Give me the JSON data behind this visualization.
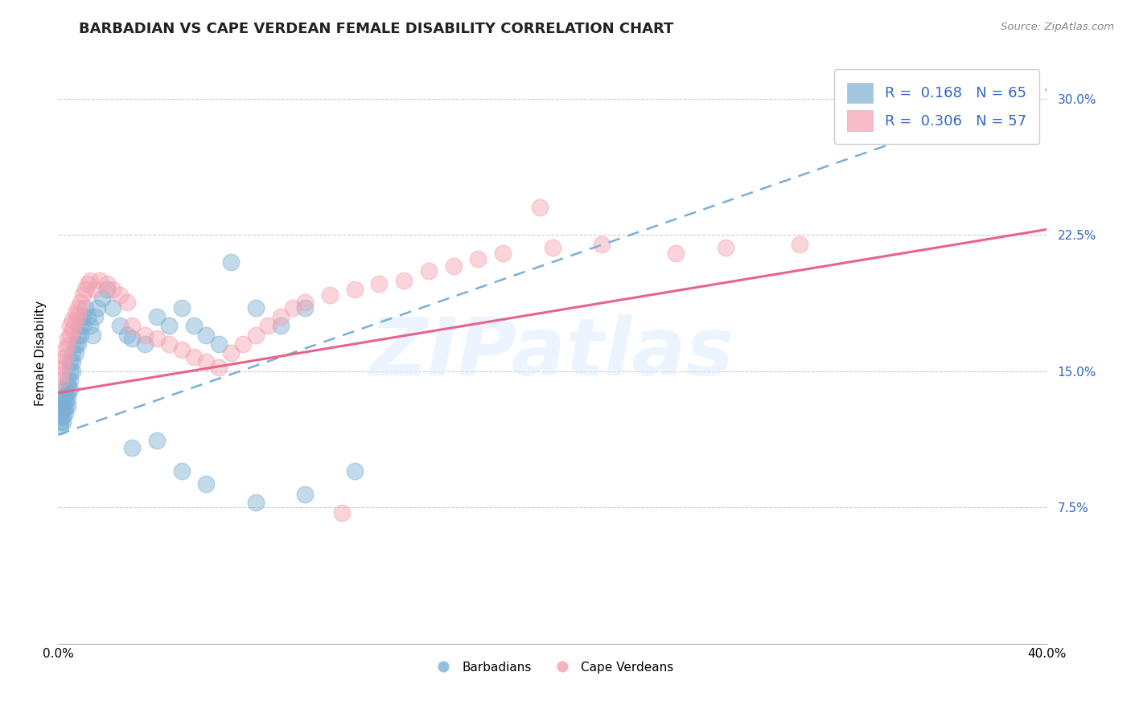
{
  "title": "BARBADIAN VS CAPE VERDEAN FEMALE DISABILITY CORRELATION CHART",
  "source_text": "Source: ZipAtlas.com",
  "ylabel": "Female Disability",
  "xlim": [
    0.0,
    0.4
  ],
  "ylim": [
    0.0,
    0.32
  ],
  "xticks": [
    0.0,
    0.4
  ],
  "xtick_labels": [
    "0.0%",
    "40.0%"
  ],
  "yticks": [
    0.075,
    0.15,
    0.225,
    0.3
  ],
  "ytick_labels": [
    "7.5%",
    "15.0%",
    "22.5%",
    "30.0%"
  ],
  "barbadian_color": "#7BAFD4",
  "capeverdean_color": "#F4A0B0",
  "barbadian_line_color": "#7BAFD4",
  "capeverdean_line_color": "#E8638A",
  "barbadian_R": 0.168,
  "barbadian_N": 65,
  "capeverdean_R": 0.306,
  "capeverdean_N": 57,
  "watermark": "ZIPatlas",
  "title_fontsize": 13,
  "axis_label_fontsize": 11,
  "legend_fontsize": 13,
  "background_color": "#ffffff",
  "grid_color": "#cccccc",
  "barbadian_trend_x0": 0.0,
  "barbadian_trend_y0": 0.115,
  "barbadian_trend_x1": 0.4,
  "barbadian_trend_y1": 0.305,
  "capeverdean_trend_x0": 0.0,
  "capeverdean_trend_y0": 0.138,
  "capeverdean_trend_x1": 0.4,
  "capeverdean_trend_y1": 0.228,
  "barbadian_points_x": [
    0.001,
    0.001,
    0.001,
    0.001,
    0.001,
    0.002,
    0.002,
    0.002,
    0.002,
    0.002,
    0.003,
    0.003,
    0.003,
    0.003,
    0.003,
    0.004,
    0.004,
    0.004,
    0.004,
    0.004,
    0.005,
    0.005,
    0.005,
    0.005,
    0.006,
    0.006,
    0.006,
    0.007,
    0.007,
    0.008,
    0.008,
    0.009,
    0.009,
    0.01,
    0.01,
    0.011,
    0.012,
    0.013,
    0.014,
    0.015,
    0.016,
    0.018,
    0.02,
    0.022,
    0.025,
    0.028,
    0.03,
    0.035,
    0.04,
    0.045,
    0.05,
    0.055,
    0.06,
    0.065,
    0.07,
    0.08,
    0.09,
    0.1,
    0.03,
    0.04,
    0.05,
    0.06,
    0.08,
    0.1,
    0.12
  ],
  "barbadian_points_y": [
    0.13,
    0.128,
    0.125,
    0.122,
    0.12,
    0.135,
    0.132,
    0.128,
    0.125,
    0.122,
    0.14,
    0.137,
    0.133,
    0.13,
    0.127,
    0.145,
    0.142,
    0.138,
    0.135,
    0.131,
    0.155,
    0.15,
    0.145,
    0.14,
    0.16,
    0.155,
    0.15,
    0.165,
    0.16,
    0.17,
    0.165,
    0.175,
    0.17,
    0.18,
    0.175,
    0.185,
    0.18,
    0.175,
    0.17,
    0.18,
    0.185,
    0.19,
    0.195,
    0.185,
    0.175,
    0.17,
    0.168,
    0.165,
    0.18,
    0.175,
    0.185,
    0.175,
    0.17,
    0.165,
    0.21,
    0.185,
    0.175,
    0.185,
    0.108,
    0.112,
    0.095,
    0.088,
    0.078,
    0.082,
    0.095
  ],
  "capeverdean_points_x": [
    0.001,
    0.001,
    0.002,
    0.002,
    0.003,
    0.003,
    0.004,
    0.004,
    0.005,
    0.005,
    0.006,
    0.006,
    0.007,
    0.007,
    0.008,
    0.008,
    0.009,
    0.01,
    0.011,
    0.012,
    0.013,
    0.015,
    0.017,
    0.02,
    0.022,
    0.025,
    0.028,
    0.03,
    0.035,
    0.04,
    0.045,
    0.05,
    0.055,
    0.06,
    0.065,
    0.07,
    0.075,
    0.08,
    0.085,
    0.09,
    0.095,
    0.1,
    0.11,
    0.12,
    0.13,
    0.14,
    0.15,
    0.16,
    0.17,
    0.18,
    0.2,
    0.22,
    0.25,
    0.27,
    0.3,
    0.195,
    0.115
  ],
  "capeverdean_points_y": [
    0.148,
    0.145,
    0.155,
    0.152,
    0.162,
    0.158,
    0.168,
    0.164,
    0.175,
    0.17,
    0.178,
    0.173,
    0.182,
    0.177,
    0.185,
    0.181,
    0.188,
    0.192,
    0.195,
    0.198,
    0.2,
    0.195,
    0.2,
    0.198,
    0.195,
    0.192,
    0.188,
    0.175,
    0.17,
    0.168,
    0.165,
    0.162,
    0.158,
    0.155,
    0.152,
    0.16,
    0.165,
    0.17,
    0.175,
    0.18,
    0.185,
    0.188,
    0.192,
    0.195,
    0.198,
    0.2,
    0.205,
    0.208,
    0.212,
    0.215,
    0.218,
    0.22,
    0.215,
    0.218,
    0.22,
    0.24,
    0.072
  ]
}
